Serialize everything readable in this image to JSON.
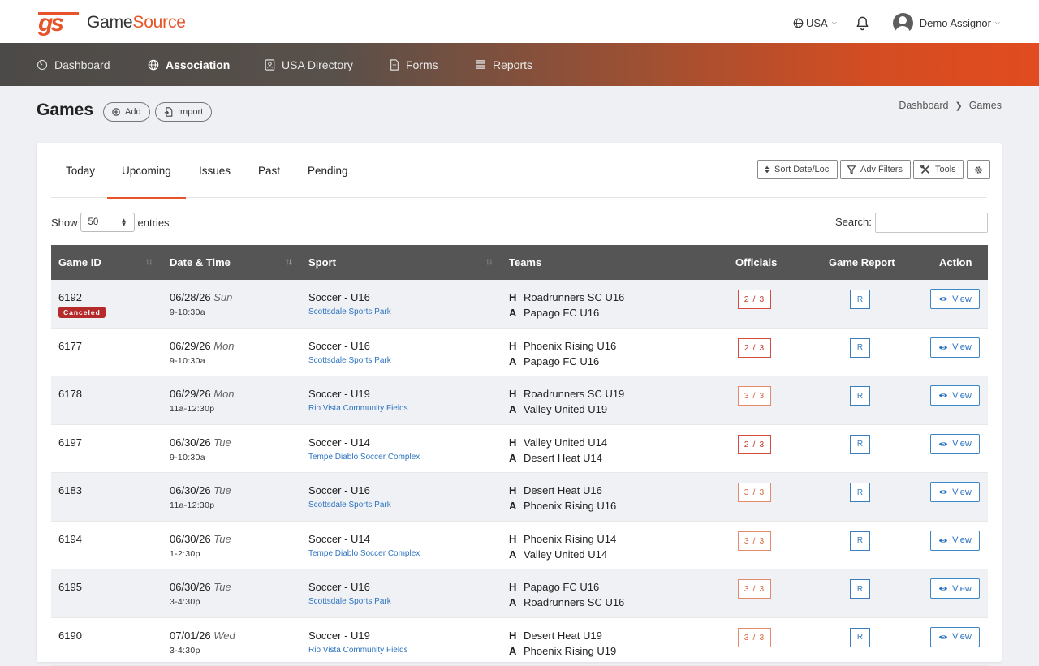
{
  "app": {
    "logo_mark": "GS",
    "name_part1": "Game",
    "name_part2": "Source",
    "brand_color": "#e8542a"
  },
  "topbar": {
    "country": "USA",
    "user": "Demo Assignor"
  },
  "nav": [
    {
      "label": "Dashboard",
      "icon": "gauge-icon"
    },
    {
      "label": "Association",
      "icon": "globe-icon",
      "active": true
    },
    {
      "label": "USA Directory",
      "icon": "contact-card-icon"
    },
    {
      "label": "Forms",
      "icon": "document-icon"
    },
    {
      "label": "Reports",
      "icon": "list-icon"
    }
  ],
  "page": {
    "title": "Games",
    "add_label": "Add",
    "import_label": "Import",
    "breadcrumb": [
      "Dashboard",
      "Games"
    ]
  },
  "tabs": [
    {
      "label": "Today"
    },
    {
      "label": "Upcoming",
      "active": true
    },
    {
      "label": "Issues"
    },
    {
      "label": "Past"
    },
    {
      "label": "Pending"
    }
  ],
  "tools": {
    "sort": "Sort Date/Loc",
    "filters": "Adv Filters",
    "tools": "Tools"
  },
  "listing": {
    "show_label": "Show",
    "entries_value": "50",
    "entries_label": "entries",
    "search_label": "Search:",
    "search_value": ""
  },
  "table": {
    "headers": [
      "Game ID",
      "Date & Time",
      "Sport",
      "Teams",
      "Officials",
      "Game Report",
      "Action"
    ],
    "home_marker": "H",
    "away_marker": "A",
    "report_label": "R",
    "view_label": "View",
    "rows": [
      {
        "id": "6192",
        "status": "Canceled",
        "date": "06/28/26",
        "day": "Sun",
        "time": "9-10:30a",
        "sport": "Soccer - U16",
        "location": "Scottsdale Sports Park",
        "home": "Roadrunners SC U16",
        "away": "Papago FC U16",
        "officials": "2 / 3"
      },
      {
        "id": "6177",
        "date": "06/29/26",
        "day": "Mon",
        "time": "9-10:30a",
        "sport": "Soccer - U16",
        "location": "Scottsdale Sports Park",
        "home": "Phoenix Rising U16",
        "away": "Papago FC U16",
        "officials": "2 / 3"
      },
      {
        "id": "6178",
        "date": "06/29/26",
        "day": "Mon",
        "time": "11a-12:30p",
        "sport": "Soccer - U19",
        "location": "Rio Vista Community Fields",
        "home": "Roadrunners SC U19",
        "away": "Valley United U19",
        "officials": "3 / 3"
      },
      {
        "id": "6197",
        "date": "06/30/26",
        "day": "Tue",
        "time": "9-10:30a",
        "sport": "Soccer - U14",
        "location": "Tempe Diablo Soccer Complex",
        "home": "Valley United U14",
        "away": "Desert Heat U14",
        "officials": "2 / 3"
      },
      {
        "id": "6183",
        "date": "06/30/26",
        "day": "Tue",
        "time": "11a-12:30p",
        "sport": "Soccer - U16",
        "location": "Scottsdale Sports Park",
        "home": "Desert Heat U16",
        "away": "Phoenix Rising U16",
        "officials": "3 / 3"
      },
      {
        "id": "6194",
        "date": "06/30/26",
        "day": "Tue",
        "time": "1-2:30p",
        "sport": "Soccer - U14",
        "location": "Tempe Diablo Soccer Complex",
        "home": "Phoenix Rising U14",
        "away": "Valley United U14",
        "officials": "3 / 3"
      },
      {
        "id": "6195",
        "date": "06/30/26",
        "day": "Tue",
        "time": "3-4:30p",
        "sport": "Soccer - U16",
        "location": "Scottsdale Sports Park",
        "home": "Papago FC U16",
        "away": "Roadrunners SC U16",
        "officials": "3 / 3"
      },
      {
        "id": "6190",
        "date": "07/01/26",
        "day": "Wed",
        "time": "3-4:30p",
        "sport": "Soccer - U19",
        "location": "Rio Vista Community Fields",
        "home": "Desert Heat U19",
        "away": "Phoenix Rising U19",
        "officials": "3 / 3"
      }
    ]
  }
}
